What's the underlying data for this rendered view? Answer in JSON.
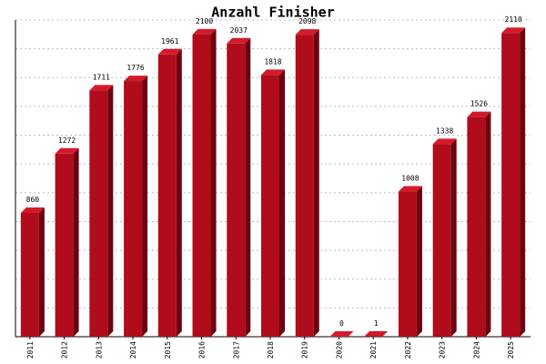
{
  "chart_data": {
    "type": "bar",
    "title": "Anzahl Finisher",
    "categories": [
      "2011",
      "2012",
      "2013",
      "2014",
      "2015",
      "2016",
      "2017",
      "2018",
      "2019",
      "2020",
      "2021",
      "2022",
      "2023",
      "2024",
      "2025"
    ],
    "values": [
      860,
      1272,
      1711,
      1776,
      1961,
      2100,
      2037,
      1818,
      2098,
      0,
      1,
      1008,
      1338,
      1526,
      2110
    ],
    "color": "#b00c1c",
    "ylim": [
      0,
      2200
    ],
    "yticks": [
      0,
      200,
      400,
      600,
      800,
      1000,
      1200,
      1400,
      1600,
      1800,
      2000,
      2200
    ],
    "grid": true
  }
}
